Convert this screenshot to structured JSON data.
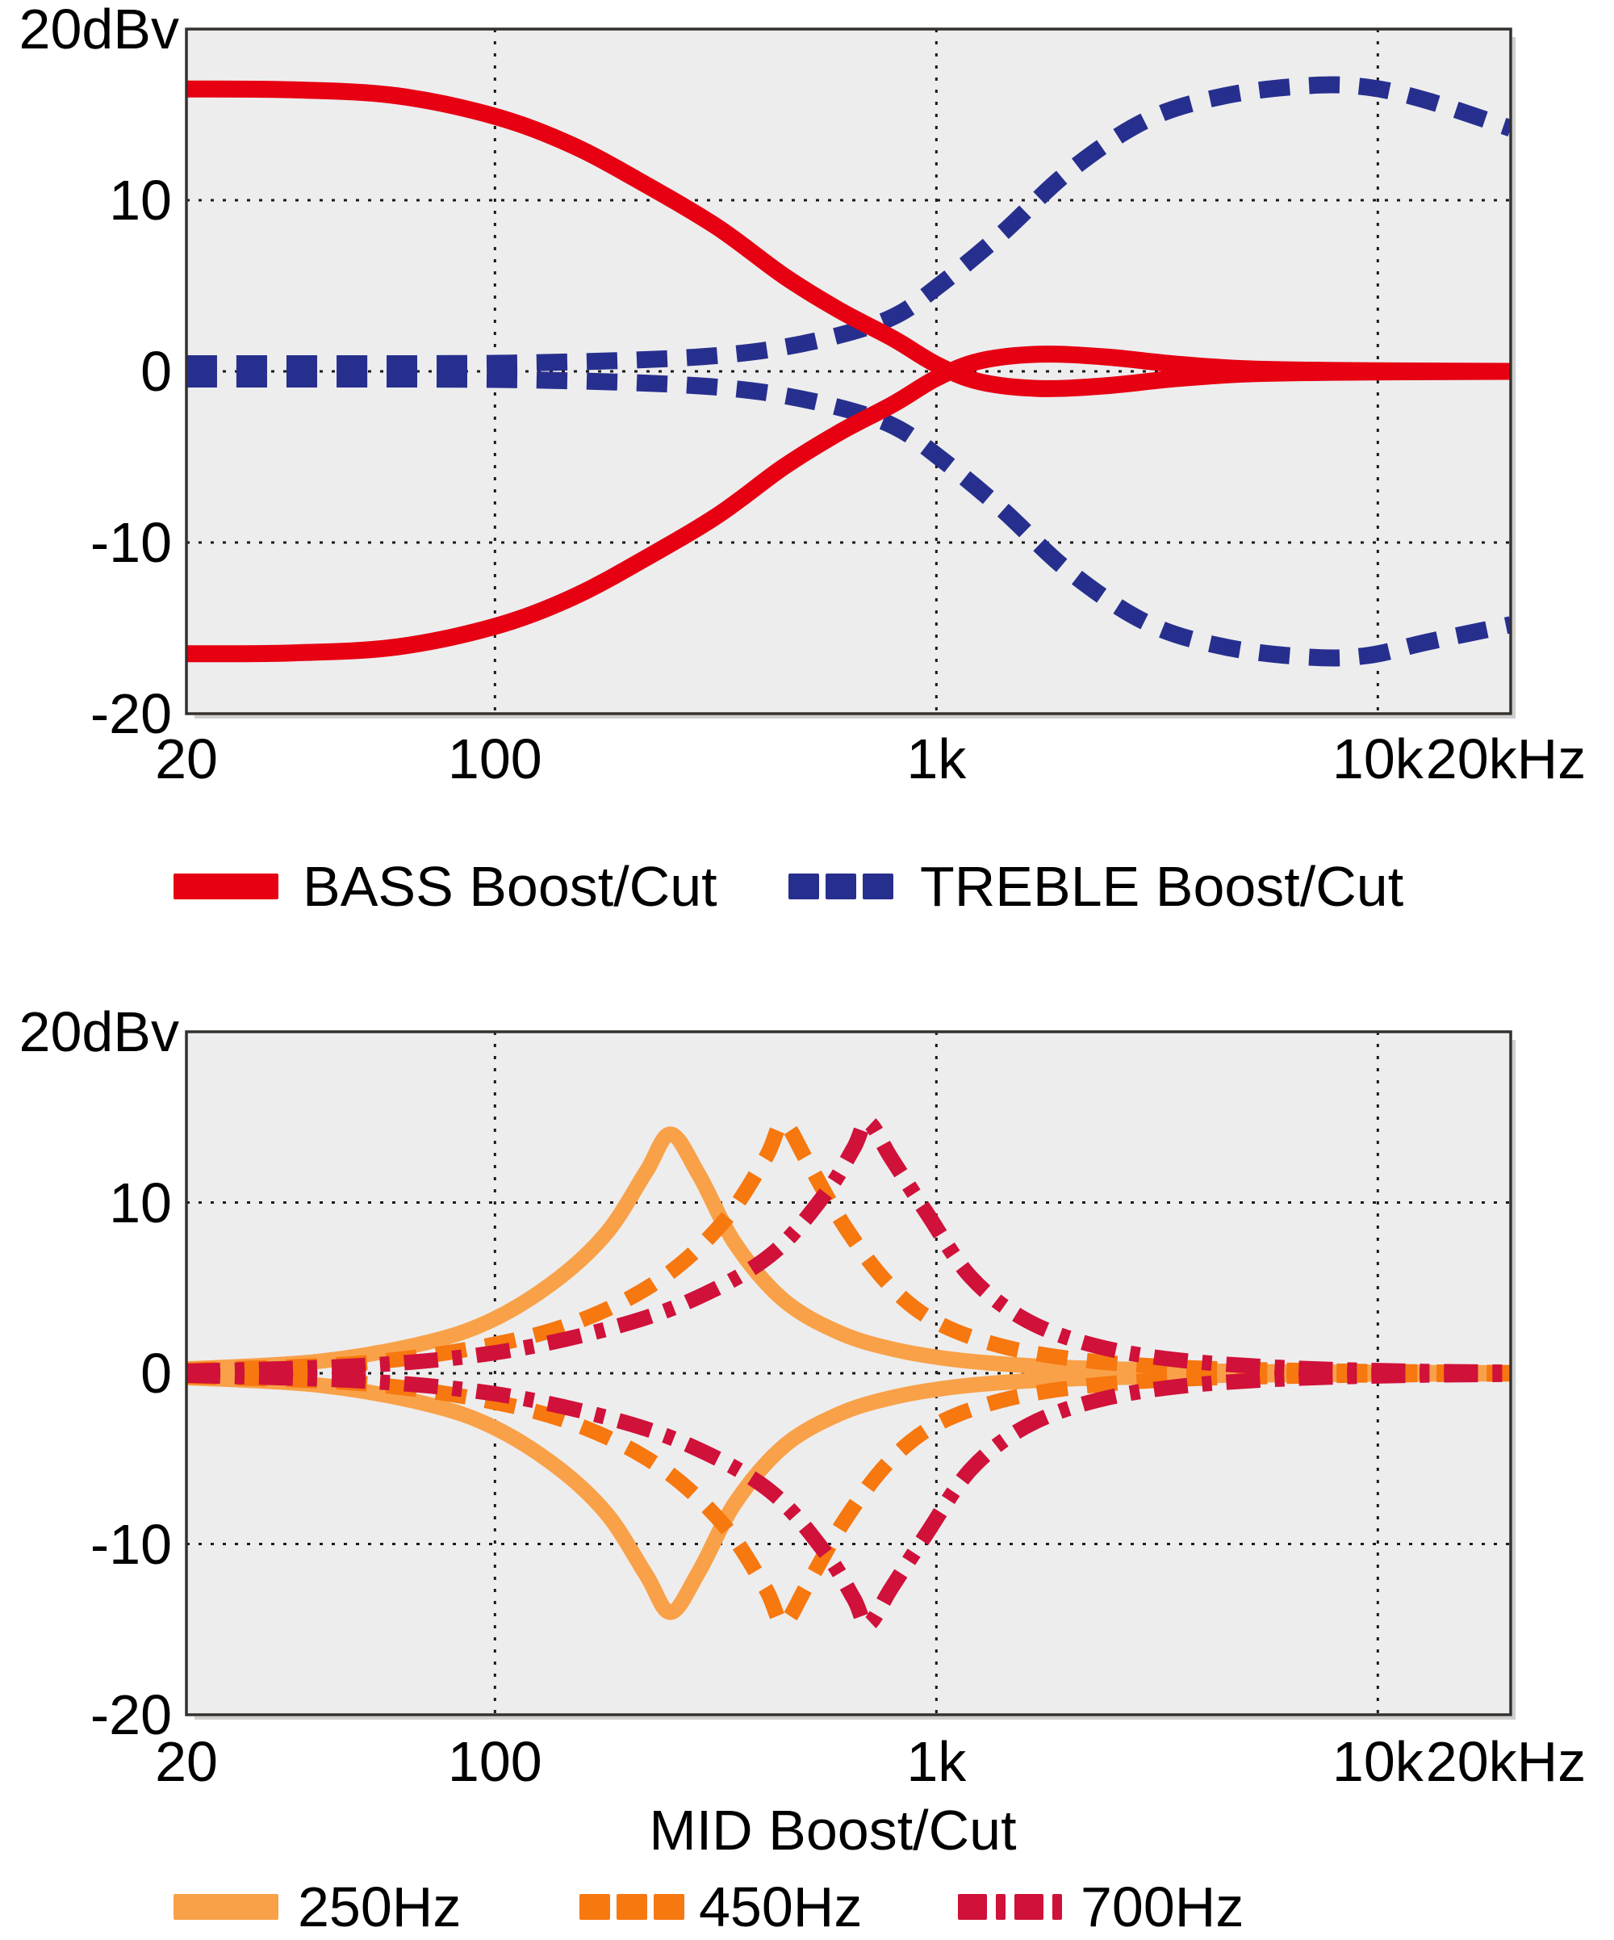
{
  "style": {
    "page_bg": "#ffffff",
    "plot_bg": "#EDEDEE",
    "grid_color": "#1b1b1b",
    "border_color": "#35302c",
    "shadow_color": "#cfcfcf",
    "text_color": "#000000"
  },
  "chart_data": [
    {
      "type": "line",
      "title": "",
      "unit_label": "20dBv",
      "xlabel": "",
      "x_scale": "log",
      "xlim": [
        20,
        20000
      ],
      "ylim": [
        -20,
        20
      ],
      "grid": true,
      "legend_position": "below",
      "x_ticks": [
        {
          "f": 20,
          "label": "20"
        },
        {
          "f": 100,
          "label": "100"
        },
        {
          "f": 1000,
          "label": "1k"
        },
        {
          "f": 10000,
          "label": "10k"
        },
        {
          "f": 20000,
          "label": "20kHz"
        }
      ],
      "y_ticks": [
        {
          "v": 10,
          "label": "10"
        },
        {
          "v": 0,
          "label": "0"
        },
        {
          "v": -10,
          "label": "-10"
        },
        {
          "v": -20,
          "label": "-20"
        }
      ],
      "legend": [
        {
          "label": "BASS Boost/Cut",
          "color": "#E60012",
          "style": "solid"
        },
        {
          "label": "TREBLE Boost/Cut",
          "color": "#272F8E",
          "style": "dashed"
        }
      ],
      "series": [
        {
          "name": "treble-boost",
          "legend": "TREBLE Boost/Cut",
          "color": "#272F8E",
          "style": "dashed",
          "points": [
            [
              20,
              0.45
            ],
            [
              60,
              0.45
            ],
            [
              120,
              0.5
            ],
            [
              250,
              0.75
            ],
            [
              400,
              1.2
            ],
            [
              600,
              2.1
            ],
            [
              800,
              3.2
            ],
            [
              1000,
              4.9
            ],
            [
              1400,
              8.0
            ],
            [
              2000,
              11.7
            ],
            [
              3000,
              14.7
            ],
            [
              4500,
              16.1
            ],
            [
              7000,
              16.7
            ],
            [
              9500,
              16.6
            ],
            [
              13000,
              15.8
            ],
            [
              20000,
              14.2
            ]
          ]
        },
        {
          "name": "treble-cut",
          "legend": "TREBLE Boost/Cut",
          "color": "#272F8E",
          "style": "dashed",
          "points": [
            [
              20,
              -0.45
            ],
            [
              60,
              -0.45
            ],
            [
              120,
              -0.5
            ],
            [
              250,
              -0.75
            ],
            [
              400,
              -1.2
            ],
            [
              600,
              -2.1
            ],
            [
              800,
              -3.2
            ],
            [
              1000,
              -4.9
            ],
            [
              1400,
              -8.0
            ],
            [
              2000,
              -11.7
            ],
            [
              3000,
              -14.7
            ],
            [
              4500,
              -16.1
            ],
            [
              7000,
              -16.7
            ],
            [
              9500,
              -16.6
            ],
            [
              13000,
              -15.8
            ],
            [
              20000,
              -14.8
            ]
          ]
        },
        {
          "name": "bass-boost",
          "legend": "BASS Boost/Cut",
          "color": "#E60012",
          "style": "solid",
          "points": [
            [
              20,
              16.5
            ],
            [
              35,
              16.45
            ],
            [
              60,
              16.1
            ],
            [
              100,
              14.9
            ],
            [
              150,
              13.2
            ],
            [
              220,
              10.9
            ],
            [
              320,
              8.4
            ],
            [
              450,
              5.6
            ],
            [
              600,
              3.6
            ],
            [
              800,
              1.9
            ],
            [
              1000,
              0.4
            ],
            [
              1250,
              -0.6
            ],
            [
              1700,
              -1.0
            ],
            [
              2400,
              -0.85
            ],
            [
              3400,
              -0.45
            ],
            [
              5000,
              -0.15
            ],
            [
              8000,
              -0.05
            ],
            [
              13000,
              -0.02
            ],
            [
              20000,
              0
            ]
          ]
        },
        {
          "name": "bass-cut",
          "legend": "BASS Boost/Cut",
          "color": "#E60012",
          "style": "solid",
          "points": [
            [
              20,
              -16.5
            ],
            [
              35,
              -16.45
            ],
            [
              60,
              -16.1
            ],
            [
              100,
              -14.9
            ],
            [
              150,
              -13.2
            ],
            [
              220,
              -10.9
            ],
            [
              320,
              -8.4
            ],
            [
              450,
              -5.6
            ],
            [
              600,
              -3.6
            ],
            [
              800,
              -1.9
            ],
            [
              1000,
              -0.4
            ],
            [
              1250,
              0.6
            ],
            [
              1700,
              1.0
            ],
            [
              2400,
              0.85
            ],
            [
              3400,
              0.45
            ],
            [
              5000,
              0.15
            ],
            [
              8000,
              0.05
            ],
            [
              13000,
              0.02
            ],
            [
              20000,
              0
            ]
          ]
        }
      ]
    },
    {
      "type": "line",
      "title": "",
      "unit_label": "20dBv",
      "xlabel": "MID Boost/Cut",
      "x_scale": "log",
      "xlim": [
        20,
        20000
      ],
      "ylim": [
        -20,
        20
      ],
      "grid": true,
      "legend_position": "below",
      "x_ticks": [
        {
          "f": 20,
          "label": "20"
        },
        {
          "f": 100,
          "label": "100"
        },
        {
          "f": 1000,
          "label": "1k"
        },
        {
          "f": 10000,
          "label": "10k"
        },
        {
          "f": 20000,
          "label": "20kHz"
        }
      ],
      "y_ticks": [
        {
          "v": 10,
          "label": "10"
        },
        {
          "v": 0,
          "label": "0"
        },
        {
          "v": -10,
          "label": "-10"
        },
        {
          "v": -20,
          "label": "-20"
        }
      ],
      "legend": [
        {
          "label": "250Hz",
          "color": "#F9A148",
          "style": "solid"
        },
        {
          "label": "450Hz",
          "color": "#F6780F",
          "style": "dashed"
        },
        {
          "label": "700Hz",
          "color": "#D01139",
          "style": "dashdot"
        }
      ],
      "series": [
        {
          "name": "mid-250-boost",
          "legend": "250Hz",
          "color": "#F9A148",
          "style": "solid",
          "points": [
            [
              20,
              0.25
            ],
            [
              40,
              0.7
            ],
            [
              70,
              1.8
            ],
            [
              100,
              3.2
            ],
            [
              140,
              5.6
            ],
            [
              180,
              8.3
            ],
            [
              220,
              11.8
            ],
            [
              250,
              14.0
            ],
            [
              290,
              11.6
            ],
            [
              350,
              7.6
            ],
            [
              450,
              4.3
            ],
            [
              600,
              2.4
            ],
            [
              800,
              1.4
            ],
            [
              1100,
              0.8
            ],
            [
              1600,
              0.45
            ],
            [
              2500,
              0.25
            ],
            [
              5000,
              0.1
            ],
            [
              10000,
              0.05
            ],
            [
              20000,
              0.03
            ]
          ]
        },
        {
          "name": "mid-250-cut",
          "legend": "250Hz",
          "color": "#F9A148",
          "style": "solid",
          "points": [
            [
              20,
              -0.25
            ],
            [
              40,
              -0.7
            ],
            [
              70,
              -1.8
            ],
            [
              100,
              -3.2
            ],
            [
              140,
              -5.6
            ],
            [
              180,
              -8.3
            ],
            [
              220,
              -11.8
            ],
            [
              250,
              -14.0
            ],
            [
              290,
              -11.6
            ],
            [
              350,
              -7.6
            ],
            [
              450,
              -4.3
            ],
            [
              600,
              -2.4
            ],
            [
              800,
              -1.4
            ],
            [
              1100,
              -0.8
            ],
            [
              1600,
              -0.45
            ],
            [
              2500,
              -0.25
            ],
            [
              5000,
              -0.1
            ],
            [
              10000,
              -0.05
            ],
            [
              20000,
              -0.03
            ]
          ]
        },
        {
          "name": "mid-450-boost",
          "legend": "450Hz",
          "color": "#F6780F",
          "style": "dashed",
          "points": [
            [
              20,
              0.18
            ],
            [
              50,
              0.6
            ],
            [
              100,
              1.7
            ],
            [
              160,
              3.2
            ],
            [
              240,
              5.6
            ],
            [
              330,
              8.9
            ],
            [
              410,
              12.6
            ],
            [
              450,
              14.6
            ],
            [
              510,
              12.4
            ],
            [
              620,
              8.6
            ],
            [
              780,
              5.2
            ],
            [
              1000,
              3.0
            ],
            [
              1400,
              1.6
            ],
            [
              2100,
              0.8
            ],
            [
              3500,
              0.35
            ],
            [
              7000,
              0.15
            ],
            [
              12000,
              0.08
            ],
            [
              20000,
              0.04
            ]
          ]
        },
        {
          "name": "mid-450-cut",
          "legend": "450Hz",
          "color": "#F6780F",
          "style": "dashed",
          "points": [
            [
              20,
              -0.18
            ],
            [
              50,
              -0.6
            ],
            [
              100,
              -1.7
            ],
            [
              160,
              -3.2
            ],
            [
              240,
              -5.6
            ],
            [
              330,
              -8.9
            ],
            [
              410,
              -12.6
            ],
            [
              450,
              -14.6
            ],
            [
              510,
              -12.4
            ],
            [
              620,
              -8.6
            ],
            [
              780,
              -5.2
            ],
            [
              1000,
              -3.0
            ],
            [
              1400,
              -1.6
            ],
            [
              2100,
              -0.8
            ],
            [
              3500,
              -0.35
            ],
            [
              7000,
              -0.15
            ],
            [
              12000,
              -0.08
            ],
            [
              20000,
              -0.04
            ]
          ]
        },
        {
          "name": "mid-700-boost",
          "legend": "700Hz",
          "color": "#D01139",
          "style": "dashdot",
          "points": [
            [
              20,
              0.12
            ],
            [
              50,
              0.45
            ],
            [
              100,
              1.2
            ],
            [
              180,
              2.6
            ],
            [
              280,
              4.3
            ],
            [
              420,
              6.9
            ],
            [
              560,
              10.5
            ],
            [
              650,
              13.2
            ],
            [
              700,
              14.7
            ],
            [
              790,
              12.6
            ],
            [
              950,
              9.4
            ],
            [
              1200,
              5.6
            ],
            [
              1600,
              3.1
            ],
            [
              2300,
              1.6
            ],
            [
              3600,
              0.75
            ],
            [
              6500,
              0.3
            ],
            [
              12000,
              0.12
            ],
            [
              20000,
              0.06
            ]
          ]
        },
        {
          "name": "mid-700-cut",
          "legend": "700Hz",
          "color": "#D01139",
          "style": "dashdot",
          "points": [
            [
              20,
              -0.12
            ],
            [
              50,
              -0.45
            ],
            [
              100,
              -1.2
            ],
            [
              180,
              -2.6
            ],
            [
              280,
              -4.3
            ],
            [
              420,
              -6.9
            ],
            [
              560,
              -10.5
            ],
            [
              650,
              -13.2
            ],
            [
              700,
              -14.7
            ],
            [
              790,
              -12.6
            ],
            [
              950,
              -9.4
            ],
            [
              1200,
              -5.6
            ],
            [
              1600,
              -3.1
            ],
            [
              2300,
              -1.6
            ],
            [
              3600,
              -0.75
            ],
            [
              6500,
              -0.3
            ],
            [
              12000,
              -0.12
            ],
            [
              20000,
              -0.06
            ]
          ]
        }
      ]
    }
  ]
}
